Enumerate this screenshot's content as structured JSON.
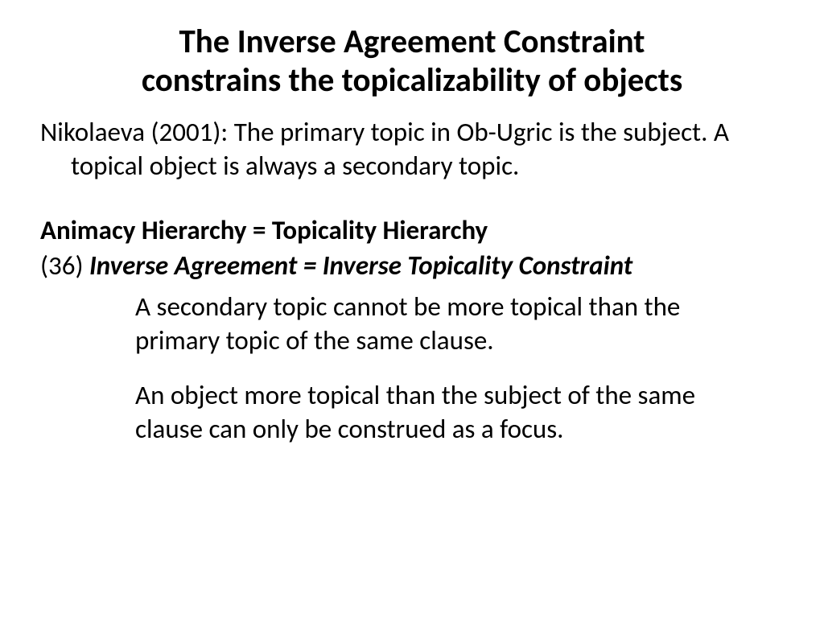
{
  "title_line1": "The Inverse Agreement Constraint",
  "title_line2": "constrains the topicalizability of objects",
  "para1": "Nikolaeva (2001): The primary topic in Ob-Ugric is the subject. A topical object is always a secondary topic.",
  "hierarchy_line": "Animacy Hierarchy = Topicality Hierarchy",
  "example_number": "(36) ",
  "example_title": "Inverse Agreement = Inverse Topicality Constraint",
  "definition1": "A secondary topic cannot be more topical than the primary topic of the same clause.",
  "definition2": "An object more topical than the subject of the same clause can only be construed as a focus.",
  "colors": {
    "background": "#ffffff",
    "text": "#000000"
  },
  "fonts": {
    "title_size": 41,
    "body_size": 33,
    "family": "Calibri"
  }
}
